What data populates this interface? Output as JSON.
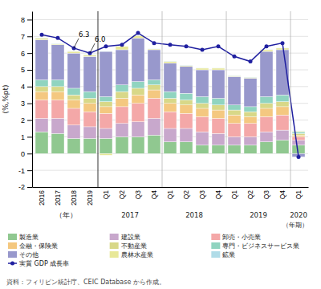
{
  "chart_data": {
    "type": "bar",
    "stacked": true,
    "grid": true,
    "legend": "bottom",
    "ylabel": "(%,%pt)",
    "xlabel": "（年期）",
    "source": "資料：フィリピン統計庁、CEIC Database から作成。",
    "categories": [
      "2016",
      "2017",
      "2018",
      "2019",
      "Q1",
      "Q2",
      "Q3",
      "Q4",
      "Q1",
      "Q2",
      "Q3",
      "Q4",
      "Q1",
      "Q2",
      "Q3",
      "Q4",
      "Q1"
    ],
    "category_groups": [
      {
        "label": "（年）",
        "size": 4
      },
      {
        "label": "2017",
        "size": 4
      },
      {
        "label": "2018",
        "size": 4
      },
      {
        "label": "2019",
        "size": 4
      },
      {
        "label": "2020",
        "size": 1
      }
    ],
    "ylim": [
      -2.0,
      8.5
    ],
    "yticks": [
      -2,
      -1,
      0,
      1,
      2,
      3,
      4,
      5,
      6,
      7,
      8
    ],
    "series": [
      {
        "name": "製造業",
        "type": "bar",
        "color": "#90c890",
        "values": [
          1.3,
          1.2,
          0.9,
          0.9,
          0.9,
          1.0,
          1.0,
          1.1,
          0.7,
          0.7,
          0.5,
          0.5,
          0.5,
          0.5,
          0.7,
          0.8,
          0.5
        ]
      },
      {
        "name": "建設業",
        "type": "bar",
        "color": "#c8a8cc",
        "values": [
          0.8,
          0.9,
          0.8,
          0.7,
          0.6,
          0.8,
          0.9,
          1.0,
          0.8,
          0.8,
          0.8,
          0.7,
          0.5,
          0.5,
          0.6,
          0.6,
          0.3
        ]
      },
      {
        "name": "卸売・小売業",
        "type": "bar",
        "color": "#f4a8a8",
        "values": [
          1.1,
          1.1,
          1.0,
          0.9,
          0.9,
          1.0,
          1.1,
          1.2,
          1.0,
          0.9,
          0.9,
          0.9,
          0.8,
          0.8,
          0.9,
          0.9,
          0.2
        ]
      },
      {
        "name": "金融・保険業",
        "type": "bar",
        "color": "#f4c880",
        "values": [
          0.5,
          0.5,
          0.5,
          0.5,
          0.4,
          0.5,
          0.5,
          0.5,
          0.5,
          0.5,
          0.5,
          0.5,
          0.5,
          0.4,
          0.5,
          0.5,
          0.1
        ]
      },
      {
        "name": "不動産業",
        "type": "bar",
        "color": "#d8d888",
        "values": [
          0.3,
          0.3,
          0.3,
          0.3,
          0.3,
          0.4,
          0.4,
          0.3,
          0.3,
          0.3,
          0.3,
          0.3,
          0.3,
          0.3,
          0.3,
          0.3,
          0.1
        ]
      },
      {
        "name": "専門・ビジネスサービス業",
        "type": "bar",
        "color": "#90d4c0",
        "values": [
          0.4,
          0.4,
          0.4,
          0.4,
          0.3,
          0.4,
          0.4,
          0.3,
          0.4,
          0.4,
          0.4,
          0.4,
          0.3,
          0.3,
          0.4,
          0.4,
          0.1
        ]
      },
      {
        "name": "その他",
        "type": "bar",
        "color": "#9898cc",
        "values": [
          2.4,
          2.1,
          2.1,
          2.1,
          2.7,
          2.1,
          2.6,
          1.8,
          1.7,
          1.6,
          1.6,
          1.7,
          1.7,
          1.7,
          2.7,
          2.7,
          -0.2
        ]
      },
      {
        "name": "農林水産業",
        "type": "bar",
        "color": "#e8e898",
        "values": [
          0.1,
          0.05,
          0.1,
          0.1,
          -0.1,
          0.2,
          0.15,
          0.05,
          0.1,
          0.05,
          0.1,
          0.1,
          0.05,
          0.05,
          0.1,
          0.1,
          0.05
        ]
      },
      {
        "name": "鉱業",
        "type": "bar",
        "color": "#b0dce8",
        "values": [
          0.02,
          0.02,
          0.02,
          0.02,
          0.02,
          0.02,
          0.02,
          0.02,
          0.02,
          0.02,
          0.02,
          0.02,
          0.02,
          0.02,
          0.02,
          0.02,
          0.01
        ]
      },
      {
        "name": "実質 GDP 成長率",
        "type": "line",
        "color": "#2020a0",
        "marker": "circle",
        "line_style": "solid",
        "values": [
          7.1,
          6.9,
          6.3,
          6.0,
          6.4,
          6.5,
          7.2,
          6.6,
          6.5,
          6.4,
          6.2,
          6.4,
          5.8,
          5.5,
          6.4,
          6.6,
          -0.2
        ]
      }
    ],
    "annotations": [
      {
        "text": "6.3",
        "category": 2,
        "value": 6.3
      },
      {
        "text": "6.0",
        "category": 3,
        "value": 6.0
      }
    ]
  }
}
